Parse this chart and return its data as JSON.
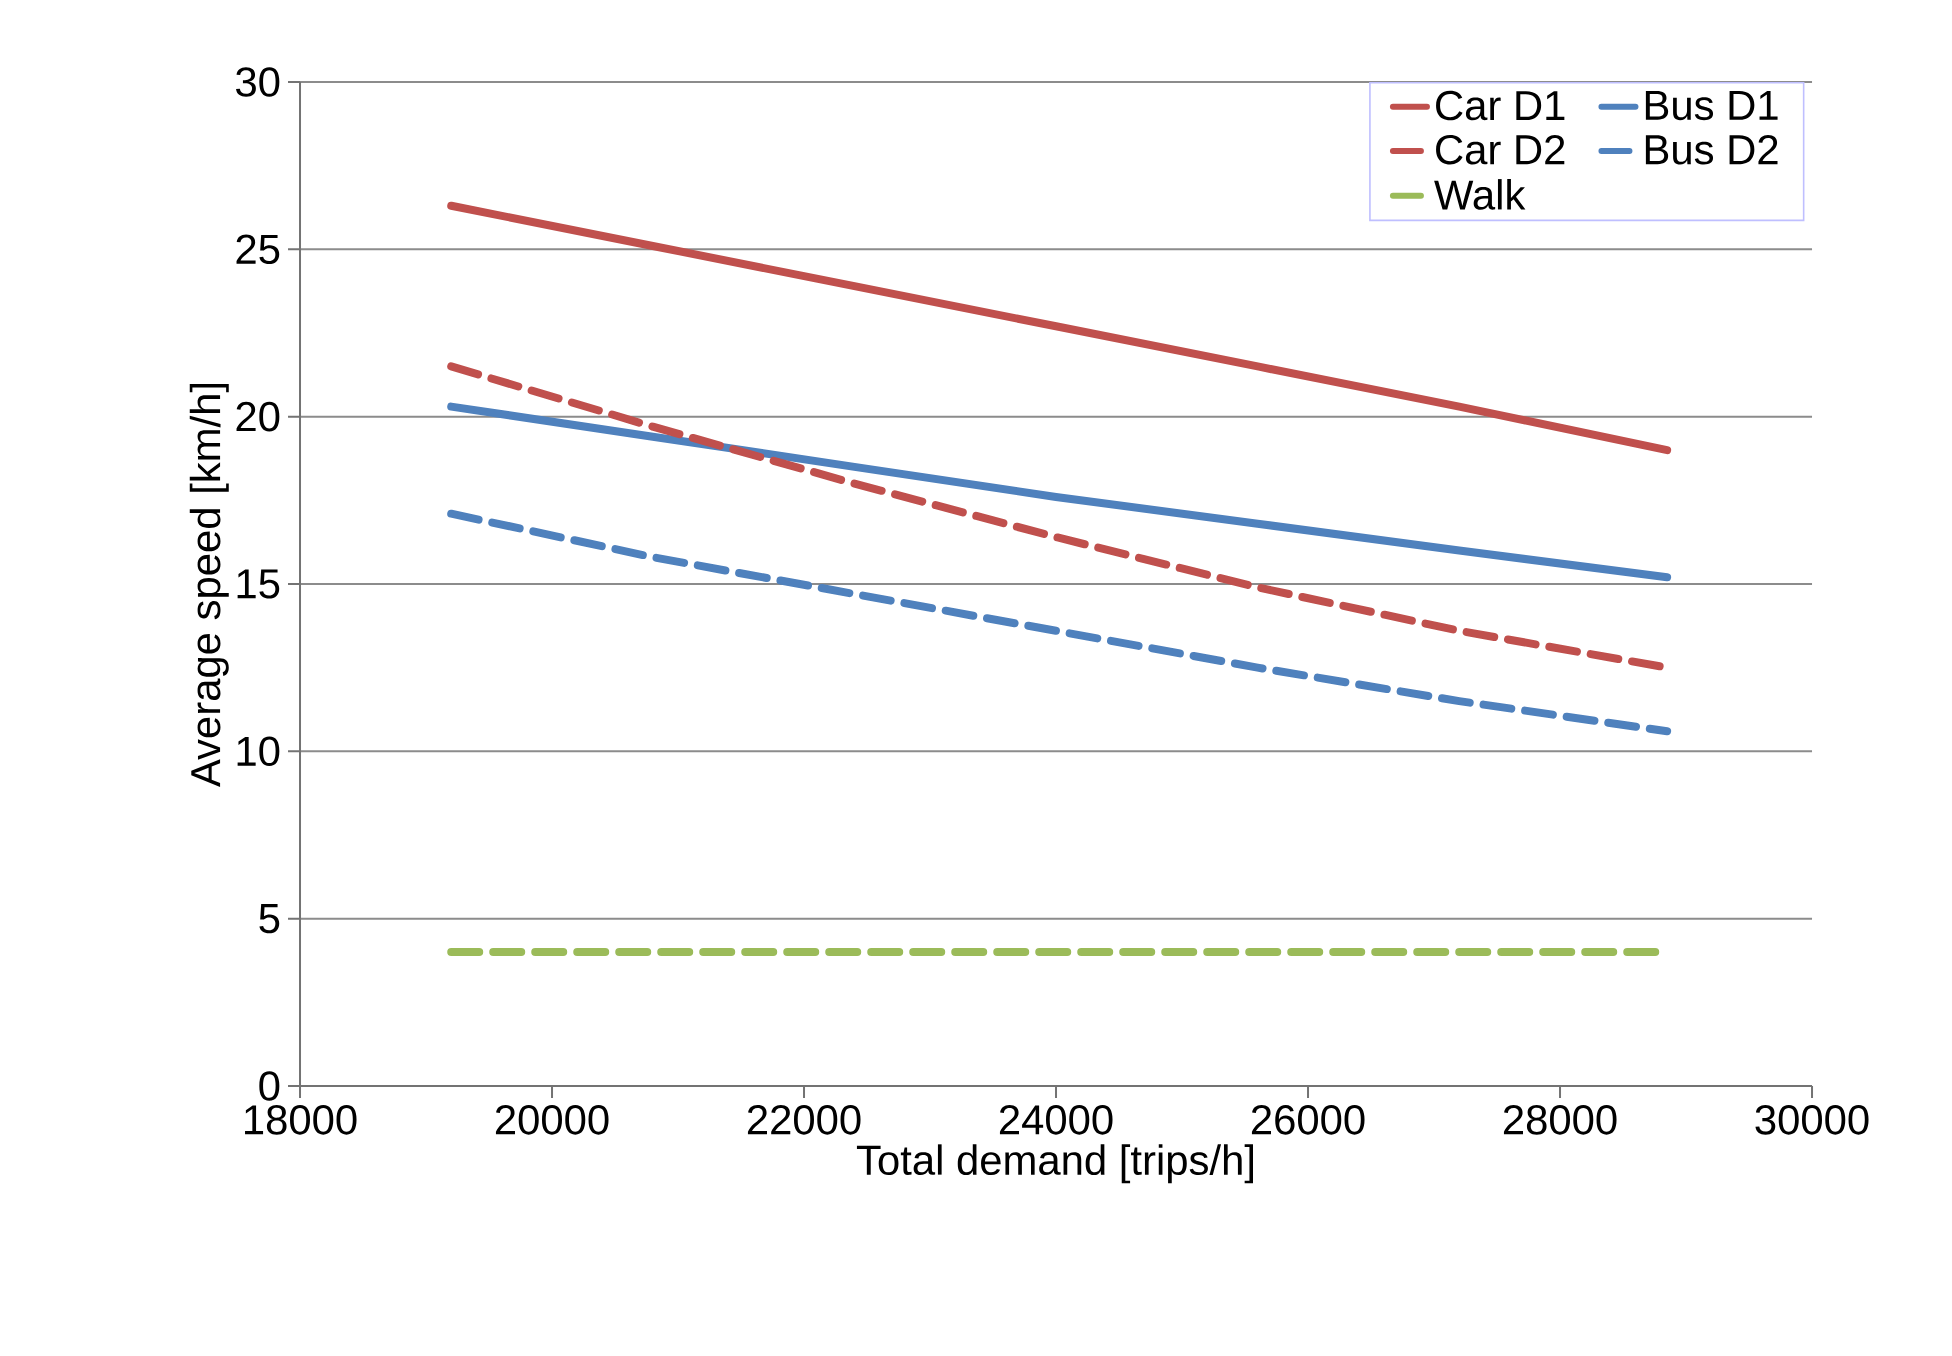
{
  "chart_data": {
    "type": "line",
    "xlabel": "Total demand [trips/h]",
    "ylabel": "Average speed [km/h]",
    "x": [
      19200,
      20800,
      22400,
      24000,
      25600,
      27200,
      28850
    ],
    "series": [
      {
        "name": "Car D1",
        "color": "#c0504d",
        "line_style": "solid",
        "values": [
          26.3,
          25.1,
          23.9,
          22.7,
          21.5,
          20.3,
          19.0
        ]
      },
      {
        "name": "Bus D1",
        "color": "#4f81bd",
        "line_style": "solid",
        "values": [
          20.3,
          19.4,
          18.5,
          17.6,
          16.8,
          16.0,
          15.2
        ]
      },
      {
        "name": "Car D2",
        "color": "#c0504d",
        "line_style": "dashed",
        "values": [
          21.5,
          19.7,
          18.0,
          16.4,
          14.9,
          13.6,
          12.5
        ]
      },
      {
        "name": "Bus D2",
        "color": "#4f81bd",
        "line_style": "dashed",
        "values": [
          17.1,
          15.8,
          14.7,
          13.6,
          12.5,
          11.5,
          10.6
        ]
      },
      {
        "name": "Walk",
        "color": "#9bbb59",
        "line_style": "dashed",
        "values": [
          4.0,
          4.0,
          4.0,
          4.0,
          4.0,
          4.0,
          4.0
        ]
      }
    ],
    "xlim": [
      18000,
      30000
    ],
    "xticks": [
      18000,
      20000,
      22000,
      24000,
      26000,
      28000,
      30000
    ],
    "ylim": [
      0,
      30
    ],
    "yticks": [
      0,
      5,
      10,
      15,
      20,
      25,
      30
    ],
    "grid": "y",
    "legend": "top right",
    "marker": "none"
  }
}
